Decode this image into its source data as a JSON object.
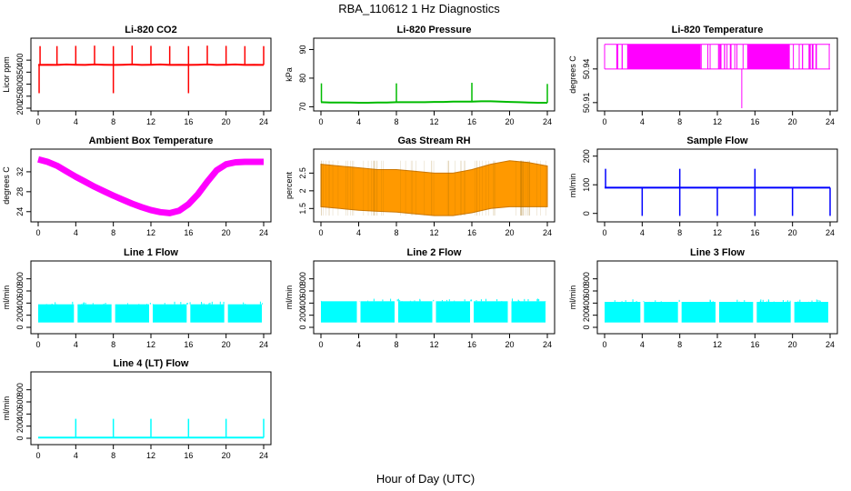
{
  "figure": {
    "title": "RBA_110612  1 Hz Diagnostics",
    "xlabel": "Hour of Day (UTC)"
  },
  "chart_data": [
    {
      "type": "line",
      "title": "Li-820 CO2",
      "ylabel": "Licor ppm",
      "color": "#ff0000",
      "xlim": [
        0,
        24
      ],
      "ylim": [
        200,
        480
      ],
      "xticks": [
        0,
        4,
        8,
        12,
        16,
        20,
        24
      ],
      "yticks": [
        200,
        250,
        300,
        350,
        400
      ],
      "series": [
        {
          "x": [
            0,
            1,
            2,
            3,
            4,
            5,
            6,
            7,
            8,
            9,
            10,
            11,
            12,
            13,
            14,
            15,
            16,
            17,
            18,
            19,
            20,
            21,
            22,
            23,
            24
          ],
          "y": [
            380,
            381,
            380,
            382,
            381,
            380,
            382,
            381,
            380,
            381,
            382,
            380,
            381,
            382,
            380,
            381,
            380,
            381,
            382,
            380,
            381,
            382,
            380,
            381,
            380
          ]
        }
      ],
      "spikes_up": [
        0.2,
        2,
        4,
        6,
        8,
        10,
        12,
        14,
        16,
        18,
        20,
        22,
        24
      ],
      "spikes_down": [
        0.1,
        8,
        16
      ]
    },
    {
      "type": "line",
      "title": "Li-820 Pressure",
      "ylabel": "kPa",
      "color": "#00bb00",
      "xlim": [
        0,
        24
      ],
      "ylim": [
        69.5,
        93
      ],
      "xticks": [
        0,
        4,
        8,
        12,
        16,
        20,
        24
      ],
      "yticks": [
        70,
        80,
        90
      ],
      "series": [
        {
          "x": [
            0,
            1,
            2,
            3,
            4,
            5,
            6,
            7,
            8,
            9,
            10,
            11,
            12,
            13,
            14,
            15,
            16,
            17,
            18,
            19,
            20,
            21,
            22,
            23,
            24
          ],
          "y": [
            71.6,
            71.5,
            71.5,
            71.5,
            71.4,
            71.4,
            71.5,
            71.5,
            71.6,
            71.6,
            71.6,
            71.6,
            71.7,
            71.7,
            71.8,
            71.8,
            71.8,
            71.9,
            71.9,
            71.8,
            71.7,
            71.6,
            71.5,
            71.4,
            71.4
          ]
        }
      ],
      "spikes_up": [
        0.05,
        8,
        16,
        24
      ]
    },
    {
      "type": "area",
      "title": "Li-820 Temperature",
      "ylabel": "degrees C",
      "color": "#ff00ff",
      "xlim": [
        0,
        24
      ],
      "ylim": [
        50.905,
        50.965
      ],
      "xticks": [
        0,
        4,
        8,
        12,
        16,
        20,
        24
      ],
      "yticks": [
        50.91,
        50.94
      ],
      "band": {
        "low": 50.94,
        "high": 50.962
      },
      "spike_down": {
        "x": 14.6,
        "y": 50.905
      }
    },
    {
      "type": "area",
      "title": "Ambient Box Temperature",
      "ylabel": "degrees C",
      "color": "#ff00ff",
      "xlim": [
        0,
        24
      ],
      "ylim": [
        22.5,
        36
      ],
      "xticks": [
        0,
        4,
        8,
        12,
        16,
        20,
        24
      ],
      "yticks": [
        24,
        28,
        32
      ],
      "series": [
        {
          "x": [
            0,
            1,
            2,
            3,
            4,
            5,
            6,
            7,
            8,
            9,
            10,
            11,
            12,
            13,
            14,
            15,
            16,
            17,
            18,
            19,
            20,
            21,
            22,
            23,
            24
          ],
          "y": [
            34.5,
            34.0,
            33.2,
            32.1,
            31.0,
            30.0,
            29.0,
            28.1,
            27.2,
            26.4,
            25.6,
            24.9,
            24.3,
            23.9,
            23.7,
            24.2,
            25.5,
            27.5,
            30.0,
            32.3,
            33.5,
            33.9,
            34.0,
            34.0,
            34.0
          ]
        }
      ]
    },
    {
      "type": "area",
      "title": "Gas Stream RH",
      "ylabel": "percent",
      "color": "#ff9900",
      "xlim": [
        0,
        24
      ],
      "ylim": [
        1.2,
        3.1
      ],
      "xticks": [
        0,
        4,
        8,
        12,
        16,
        20,
        24
      ],
      "yticks": [
        1.5,
        2.0,
        2.5
      ],
      "series": [
        {
          "x": [
            0,
            2,
            4,
            6,
            8,
            10,
            12,
            14,
            16,
            18,
            20,
            22,
            24
          ],
          "high": [
            2.75,
            2.7,
            2.65,
            2.6,
            2.6,
            2.55,
            2.5,
            2.5,
            2.6,
            2.75,
            2.85,
            2.8,
            2.7
          ],
          "low": [
            1.55,
            1.5,
            1.45,
            1.42,
            1.4,
            1.35,
            1.3,
            1.3,
            1.38,
            1.5,
            1.55,
            1.55,
            1.55
          ]
        }
      ]
    },
    {
      "type": "line",
      "title": "Sample Flow",
      "ylabel": "ml/min",
      "color": "#0000ff",
      "xlim": [
        0,
        24
      ],
      "ylim": [
        -20,
        215
      ],
      "xticks": [
        0,
        4,
        8,
        12,
        16,
        20,
        24
      ],
      "yticks": [
        0,
        100,
        200
      ],
      "series": [
        {
          "x": [
            0,
            24
          ],
          "y": [
            90,
            90
          ]
        }
      ],
      "spikes_up": [
        0.1,
        8,
        16
      ],
      "spikes_down": [
        4,
        8,
        12,
        16,
        20,
        24
      ]
    },
    {
      "type": "area",
      "title": "Line 1 Flow",
      "ylabel": "ml/min",
      "color": "#00ffff",
      "xlim": [
        0,
        24
      ],
      "ylim": [
        -60,
        1050
      ],
      "xticks": [
        0,
        4,
        8,
        12,
        16,
        20,
        24
      ],
      "yticks": [
        0,
        200,
        400,
        600,
        800
      ],
      "band": {
        "low": 80,
        "high": 380
      },
      "gaps": [
        4,
        8,
        12,
        16,
        20,
        24
      ]
    },
    {
      "type": "area",
      "title": "Line 2 Flow",
      "ylabel": "ml/min",
      "color": "#00ffff",
      "xlim": [
        0,
        24
      ],
      "ylim": [
        -60,
        1050
      ],
      "xticks": [
        0,
        4,
        8,
        12,
        16,
        20,
        24
      ],
      "yticks": [
        0,
        200,
        400,
        600,
        800
      ],
      "band": {
        "low": 80,
        "high": 430
      },
      "gaps": [
        4,
        8,
        12,
        16,
        20,
        24
      ]
    },
    {
      "type": "area",
      "title": "Line 3 Flow",
      "ylabel": "ml/min",
      "color": "#00ffff",
      "xlim": [
        0,
        24
      ],
      "ylim": [
        -60,
        1050
      ],
      "xticks": [
        0,
        4,
        8,
        12,
        16,
        20,
        24
      ],
      "yticks": [
        0,
        200,
        400,
        600,
        800
      ],
      "band": {
        "low": 80,
        "high": 420
      },
      "gaps": [
        4,
        8,
        12,
        16,
        20,
        24
      ]
    },
    {
      "type": "line",
      "title": "Line 4 (LT) Flow",
      "ylabel": "ml/min",
      "color": "#00ffff",
      "xlim": [
        0,
        24
      ],
      "ylim": [
        -60,
        1050
      ],
      "xticks": [
        0,
        4,
        8,
        12,
        16,
        20,
        24
      ],
      "yticks": [
        0,
        200,
        400,
        600,
        800
      ],
      "series": [
        {
          "x": [
            0,
            24
          ],
          "y": [
            10,
            10
          ]
        }
      ],
      "spikes_up": [
        4,
        8,
        12,
        16,
        20,
        24
      ]
    }
  ]
}
